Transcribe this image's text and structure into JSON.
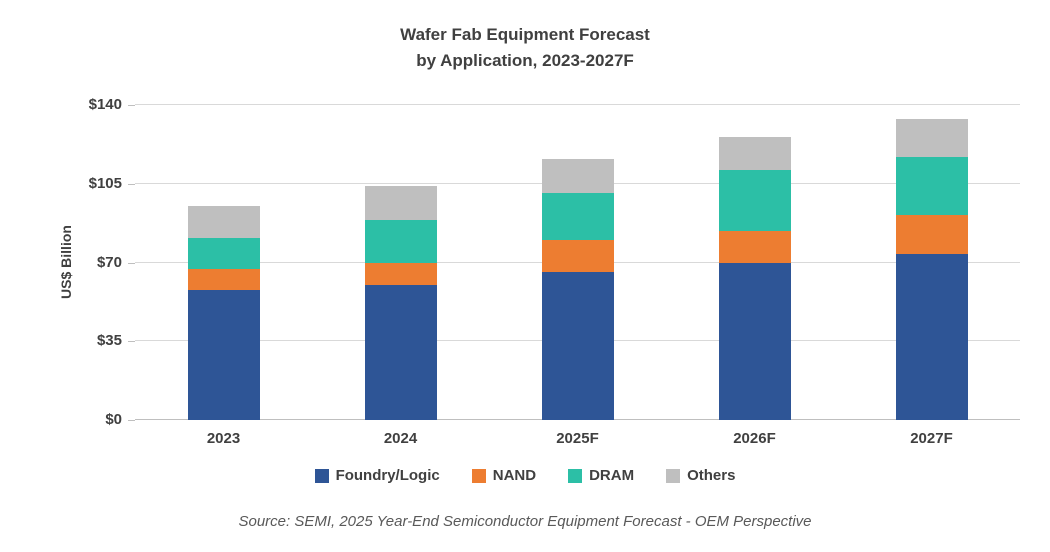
{
  "chart_data": {
    "type": "bar",
    "stacked": true,
    "title": "Wafer Fab Equipment Forecast",
    "subtitle": "by Application, 2023-2027F",
    "ylabel": "US$ Billion",
    "ylim": [
      0,
      140
    ],
    "yticks": [
      0,
      35,
      70,
      105,
      140
    ],
    "ytick_labels": [
      "$0",
      "$35",
      "$70",
      "$105",
      "$140"
    ],
    "grid": "horizontal",
    "legend_position": "bottom",
    "categories": [
      "2023",
      "2024",
      "2025F",
      "2026F",
      "2027F"
    ],
    "series": [
      {
        "name": "Foundry/Logic",
        "color": "#2e5596",
        "values": [
          58,
          60,
          66,
          70,
          74
        ]
      },
      {
        "name": "NAND",
        "color": "#ed7d31",
        "values": [
          9,
          10,
          14,
          14,
          17
        ]
      },
      {
        "name": "DRAM",
        "color": "#2cbfa6",
        "values": [
          14,
          19,
          21,
          27,
          26
        ]
      },
      {
        "name": "Others",
        "color": "#bfbfbf",
        "values": [
          14,
          15,
          15,
          15,
          17
        ]
      }
    ],
    "totals": [
      95,
      104,
      116,
      126,
      134
    ],
    "source": "Source: SEMI, 2025 Year-End Semiconductor Equipment Forecast - OEM Perspective"
  }
}
